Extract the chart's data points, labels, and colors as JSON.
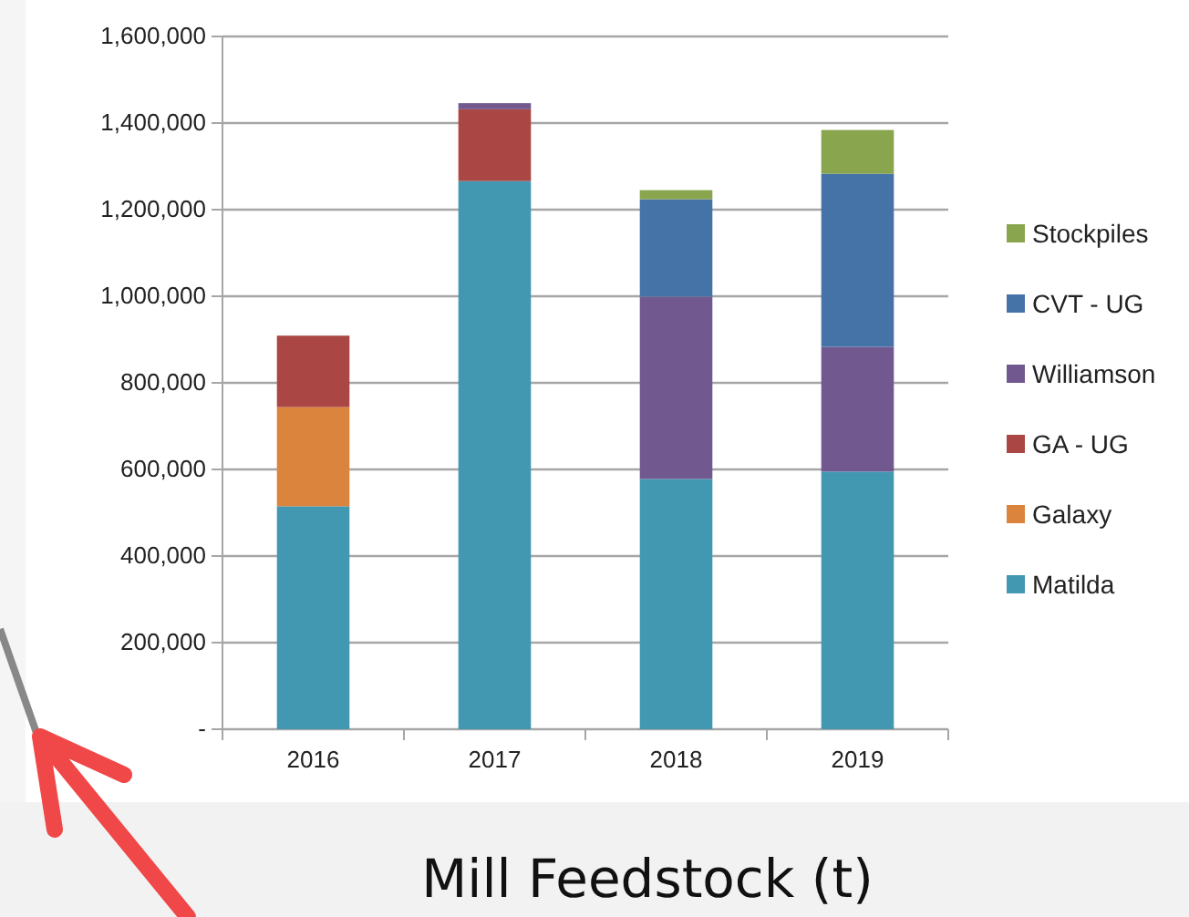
{
  "chart_data": {
    "type": "bar",
    "title": "Mill Feedstock (t)",
    "stacked": true,
    "categories": [
      "2016",
      "2017",
      "2018",
      "2019"
    ],
    "series": [
      {
        "name": "Matilda",
        "color": "#4298b1",
        "values": [
          515000,
          1266000,
          578000,
          595000
        ]
      },
      {
        "name": "Galaxy",
        "color": "#db843d",
        "values": [
          229000,
          null,
          null,
          null
        ]
      },
      {
        "name": "GA - UG",
        "color": "#aa4643",
        "values": [
          165000,
          166000,
          null,
          null
        ]
      },
      {
        "name": "Williamson",
        "color": "#71588f",
        "values": [
          null,
          14000,
          421000,
          288000
        ]
      },
      {
        "name": "CVT - UG",
        "color": "#4572a7",
        "values": [
          null,
          null,
          225000,
          400000
        ]
      },
      {
        "name": "Stockpiles",
        "color": "#89a54e",
        "values": [
          null,
          null,
          21000,
          101000
        ]
      }
    ],
    "ylim": [
      0,
      1600000
    ],
    "yticks": [
      {
        "value": 0,
        "label": "-"
      },
      {
        "value": 200000,
        "label": "200,000"
      },
      {
        "value": 400000,
        "label": "400,000"
      },
      {
        "value": 600000,
        "label": "600,000"
      },
      {
        "value": 800000,
        "label": "800,000"
      },
      {
        "value": 1000000,
        "label": "1,000,000"
      },
      {
        "value": 1200000,
        "label": "1,200,000"
      },
      {
        "value": 1400000,
        "label": "1,400,000"
      },
      {
        "value": 1600000,
        "label": "1,600,000"
      }
    ],
    "grid": "y",
    "legend": "right"
  }
}
